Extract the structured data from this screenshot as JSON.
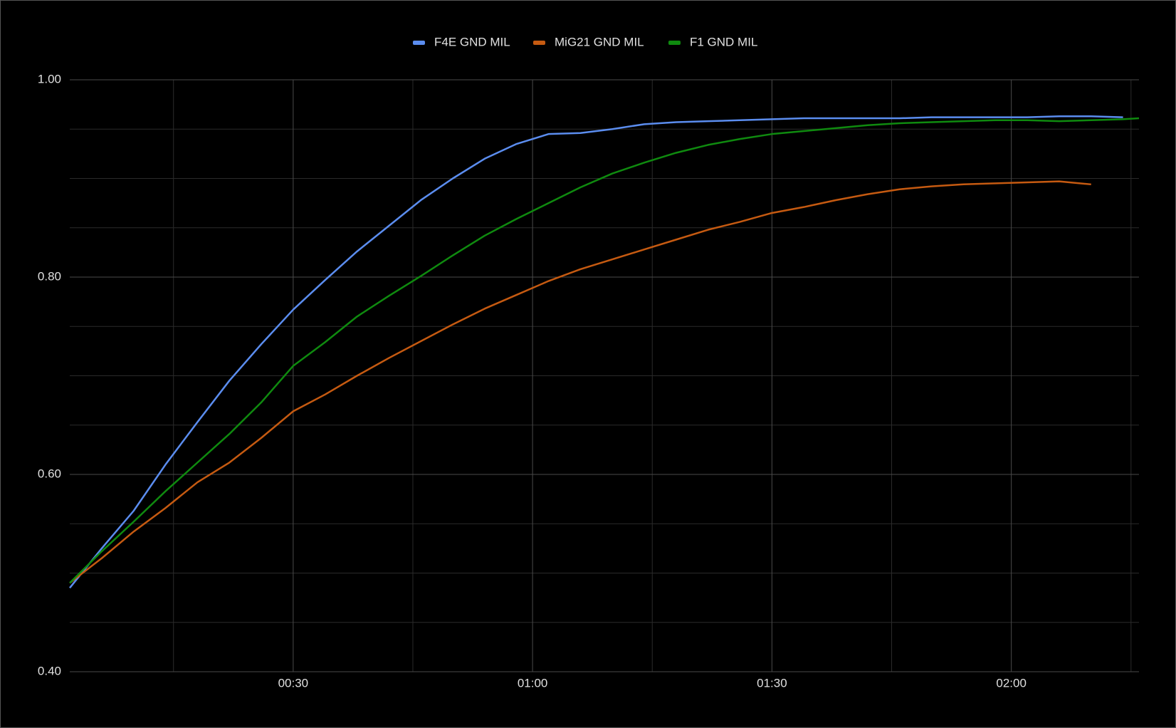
{
  "chart_data": {
    "type": "line",
    "x": [
      2,
      6,
      10,
      14,
      18,
      22,
      26,
      30,
      34,
      38,
      42,
      46,
      50,
      54,
      58,
      62,
      66,
      70,
      74,
      78,
      82,
      86,
      90,
      94,
      98,
      102,
      106,
      110,
      114,
      118,
      122,
      126,
      130,
      134,
      136
    ],
    "series": [
      {
        "name": "F4E GND MIL",
        "color": "#5b8def",
        "values": [
          0.485,
          0.525,
          0.563,
          0.61,
          0.653,
          0.695,
          0.732,
          0.767,
          0.797,
          0.826,
          0.852,
          0.878,
          0.9,
          0.92,
          0.935,
          0.945,
          0.946,
          0.95,
          0.955,
          0.957,
          0.958,
          0.959,
          0.96,
          0.961,
          0.961,
          0.961,
          0.961,
          0.962,
          0.962,
          0.962,
          0.962,
          0.963,
          0.963,
          0.962,
          null
        ]
      },
      {
        "name": "MiG21 GND MIL",
        "color": "#c55a11",
        "values": [
          0.49,
          0.515,
          0.542,
          0.566,
          0.592,
          0.612,
          0.637,
          0.664,
          0.681,
          0.7,
          0.718,
          0.735,
          0.752,
          0.768,
          0.782,
          0.796,
          0.808,
          0.818,
          0.828,
          0.838,
          0.848,
          0.856,
          0.865,
          0.871,
          0.878,
          0.884,
          0.889,
          0.892,
          0.894,
          0.895,
          0.896,
          0.897,
          0.894,
          null,
          null
        ]
      },
      {
        "name": "F1 GND MIL",
        "color": "#0f8a0f",
        "values": [
          0.49,
          0.522,
          0.552,
          0.583,
          0.612,
          0.641,
          0.673,
          0.71,
          0.734,
          0.76,
          0.781,
          0.801,
          0.822,
          0.842,
          0.859,
          0.875,
          0.891,
          0.905,
          0.916,
          0.926,
          0.934,
          0.94,
          0.945,
          0.948,
          0.951,
          0.954,
          0.956,
          0.957,
          0.958,
          0.959,
          0.959,
          0.958,
          0.959,
          0.96,
          0.961
        ]
      }
    ],
    "xlim": [
      2,
      136
    ],
    "xticks": [
      {
        "value": 30,
        "label": "00:30"
      },
      {
        "value": 60,
        "label": "01:00"
      },
      {
        "value": 90,
        "label": "01:30"
      },
      {
        "value": 120,
        "label": "02:00"
      }
    ],
    "xminor": [
      15,
      45,
      75,
      105,
      135
    ],
    "ylim": [
      0.4,
      1.0
    ],
    "yticks": [
      {
        "value": 0.4,
        "label": "0.40"
      },
      {
        "value": 0.6,
        "label": "0.60"
      },
      {
        "value": 0.8,
        "label": "0.80"
      },
      {
        "value": 1.0,
        "label": "1.00"
      }
    ],
    "yminor": [
      0.45,
      0.5,
      0.55,
      0.65,
      0.7,
      0.75,
      0.85,
      0.9,
      0.95
    ],
    "grid": true,
    "legend": "top"
  }
}
